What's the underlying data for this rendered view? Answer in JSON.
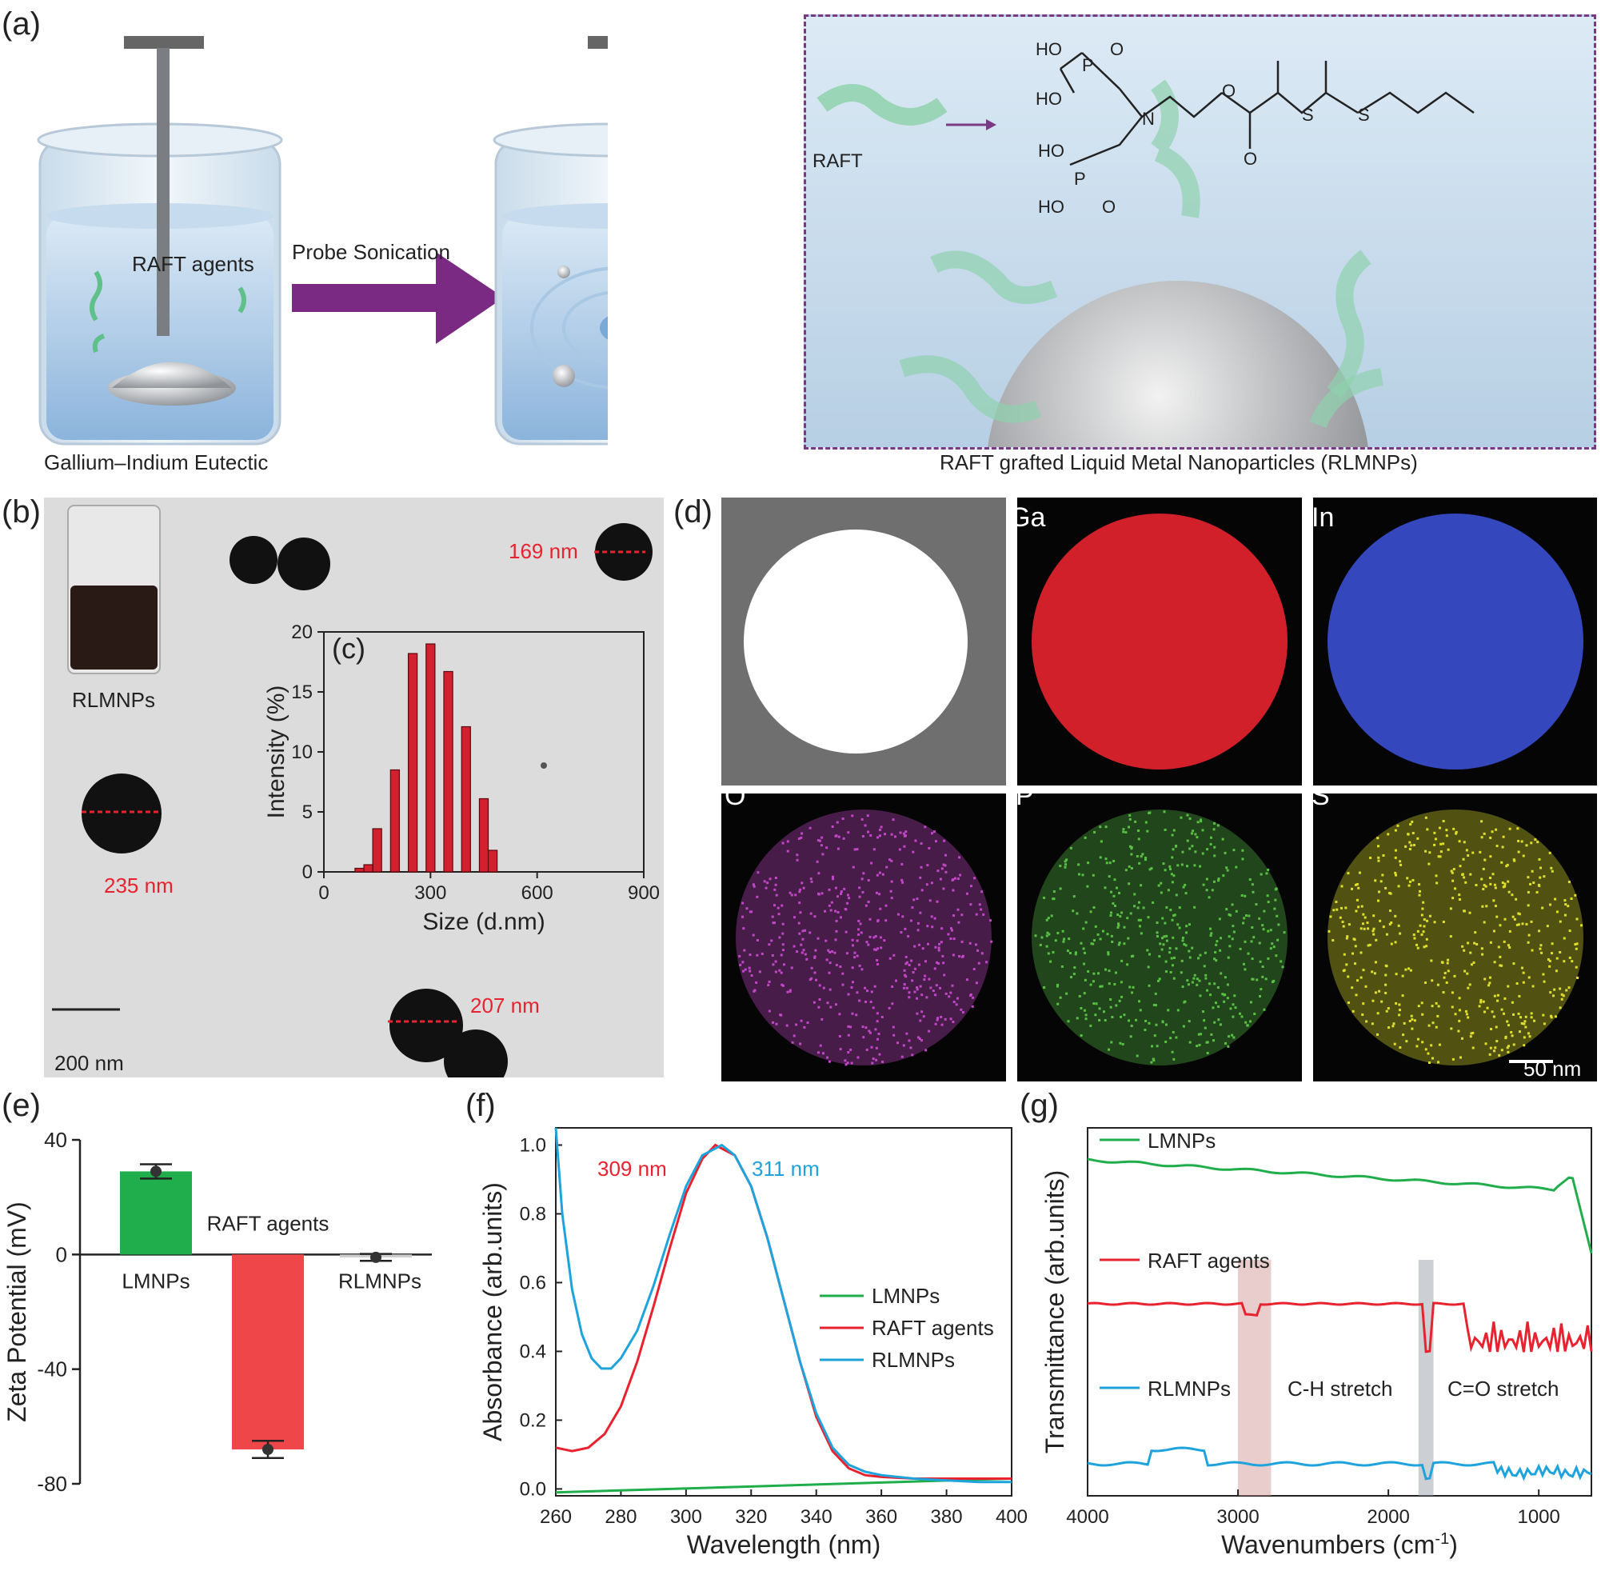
{
  "panel_a": {
    "label": "(a)",
    "beaker1_label": "RAFT agents",
    "arrow_label": "Probe Sonication",
    "caption_left": "Gallium–Indium Eutectic",
    "caption_right": "RAFT grafted Liquid Metal Nanoparticles (RLMNPs)",
    "raft_label": "RAFT",
    "molecule": {
      "atoms": [
        "HO",
        "P",
        "O",
        "HO",
        "N",
        "O",
        "O",
        "S",
        "S",
        "HO",
        "P",
        "HO",
        "O"
      ]
    }
  },
  "panel_b": {
    "label": "(b)",
    "vial_label": "RLMNPs",
    "sizes": [
      "169 nm",
      "235 nm",
      "207 nm"
    ],
    "scale_bar": "200 nm"
  },
  "panel_c": {
    "label": "(c)",
    "chart_data": {
      "type": "bar",
      "xlabel": "Size (d.nm)",
      "ylabel": "Intensity (%)",
      "xlim": [
        0,
        900
      ],
      "ylim": [
        0,
        20
      ],
      "xticks": [
        "0",
        "300",
        "600",
        "900"
      ],
      "yticks": [
        "0",
        "5",
        "10",
        "15",
        "20"
      ],
      "bin_width": 50,
      "x": [
        100,
        150,
        200,
        250,
        300,
        350,
        400,
        450
      ],
      "values": [
        0.3,
        3.6,
        8.5,
        18.2,
        19.0,
        16.7,
        12.1,
        6.1
      ],
      "extra_x": [
        125,
        475
      ],
      "extra_values": [
        0.6,
        1.8
      ],
      "color": "#d3202e"
    }
  },
  "panel_d": {
    "label": "(d)",
    "tiles": [
      {
        "label": "",
        "color": "#ffffff"
      },
      {
        "label": "Ga",
        "color": "#e8232f"
      },
      {
        "label": "In",
        "color": "#3a4fd0"
      },
      {
        "label": "O",
        "color": "#c247c8"
      },
      {
        "label": "P",
        "color": "#58c144"
      },
      {
        "label": "S",
        "color": "#e0e02c"
      }
    ],
    "scale_bar": "50 nm"
  },
  "panel_e": {
    "label": "(e)",
    "chart_data": {
      "type": "bar",
      "ylabel": "Zeta Potential (mV)",
      "ylim": [
        -80,
        40
      ],
      "yticks": [
        "40",
        "0",
        "-40",
        "-80"
      ],
      "categories": [
        "LMNPs",
        "RAFT agents",
        "RLMNPs"
      ],
      "values": [
        29,
        -68,
        -1
      ],
      "errors": [
        2.5,
        3.0,
        1.2
      ],
      "colors": [
        "#1fae4b",
        "#ef4749",
        "#cccccc"
      ]
    }
  },
  "panel_f": {
    "label": "(f)",
    "peak_red": "309 nm",
    "peak_blue": "311 nm",
    "chart_data": {
      "type": "line",
      "xlabel": "Wavelength (nm)",
      "ylabel": "Absorbance (arb.units)",
      "xlim": [
        260,
        400
      ],
      "ylim": [
        -0.02,
        1.05
      ],
      "xticks": [
        "260",
        "280",
        "300",
        "320",
        "340",
        "360",
        "380",
        "400"
      ],
      "yticks": [
        "0.0",
        "0.2",
        "0.4",
        "0.6",
        "0.8",
        "1.0"
      ],
      "series": [
        {
          "name": "LMNPs",
          "color": "#1fae4b",
          "x": [
            260,
            400
          ],
          "y": [
            -0.01,
            0.03
          ]
        },
        {
          "name": "RAFT agents",
          "color": "#e8232f",
          "x": [
            260,
            265,
            270,
            275,
            280,
            285,
            290,
            295,
            300,
            305,
            309,
            315,
            320,
            325,
            330,
            335,
            340,
            345,
            350,
            355,
            360,
            370,
            380,
            390,
            400
          ],
          "y": [
            0.12,
            0.11,
            0.12,
            0.16,
            0.24,
            0.37,
            0.53,
            0.7,
            0.86,
            0.96,
            1.0,
            0.97,
            0.88,
            0.73,
            0.55,
            0.37,
            0.21,
            0.11,
            0.06,
            0.04,
            0.035,
            0.03,
            0.03,
            0.03,
            0.03
          ]
        },
        {
          "name": "RLMNPs",
          "color": "#1ea3dc",
          "x": [
            260,
            262,
            265,
            268,
            271,
            274,
            277,
            280,
            285,
            290,
            295,
            300,
            305,
            311,
            315,
            320,
            325,
            330,
            335,
            340,
            345,
            350,
            355,
            360,
            370,
            380,
            390,
            400
          ],
          "y": [
            1.05,
            0.8,
            0.58,
            0.45,
            0.38,
            0.35,
            0.35,
            0.38,
            0.46,
            0.59,
            0.74,
            0.88,
            0.97,
            1.0,
            0.97,
            0.88,
            0.73,
            0.55,
            0.37,
            0.22,
            0.12,
            0.07,
            0.05,
            0.04,
            0.03,
            0.025,
            0.02,
            0.02
          ]
        }
      ]
    }
  },
  "panel_g": {
    "label": "(g)",
    "band_ch": "C-H stretch",
    "band_co": "C=O stretch",
    "chart_data": {
      "type": "line",
      "xlabel": "Wavenumbers (cm-1)",
      "xlabel_main": "Wavenumbers (cm",
      "xlabel_sup": "-1",
      "xlabel_end": ")",
      "ylabel": "Transmittance (arb.units)",
      "xlim": [
        4000,
        650
      ],
      "xticks": [
        "4000",
        "3000",
        "2000",
        "1000"
      ],
      "series": [
        {
          "name": "LMNPs",
          "color": "#1fae4b"
        },
        {
          "name": "RAFT agents",
          "color": "#e8232f"
        },
        {
          "name": "RLMNPs",
          "color": "#1ea3dc"
        }
      ]
    }
  }
}
